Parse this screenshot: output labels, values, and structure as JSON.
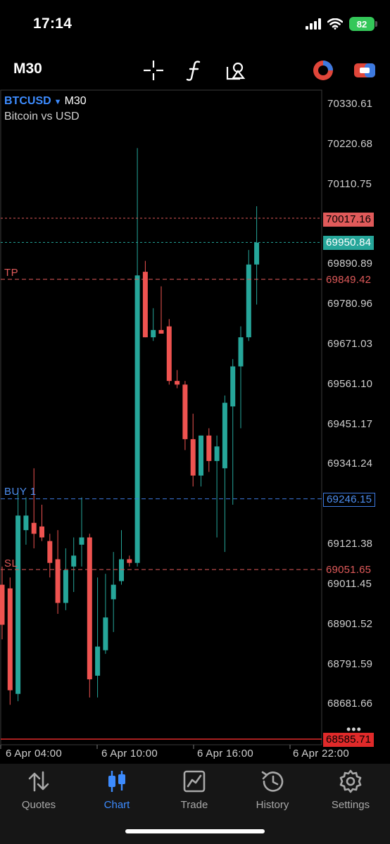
{
  "status_bar": {
    "time": "17:14",
    "battery": "82",
    "icons": [
      "cellular-signal-icon",
      "wifi-icon",
      "battery-icon"
    ]
  },
  "toolbar": {
    "timeframe": "M30",
    "tools": [
      "crosshair-icon",
      "indicators-icon",
      "objects-icon",
      "trade-signal-icon",
      "one-click-trading-icon"
    ]
  },
  "chart": {
    "symbol": "BTCUSD",
    "period": "M30",
    "description": "Bitcoin vs USD",
    "levels": {
      "ask": "70017.16",
      "bid": "69950.84",
      "tp": "69849.42",
      "buy": "69246.15",
      "sl": "69051.65",
      "last": "68585.71"
    },
    "level_labels": {
      "tp": "TP",
      "buy": "BUY 1",
      "sl": "SL"
    },
    "colors": {
      "bull": "#26a69a",
      "bear": "#ef5350",
      "ask_line": "#e05a5a",
      "bid_line": "#26a69a",
      "buy_line": "#3d7ae0"
    },
    "more": "•••"
  },
  "chart_data": {
    "type": "candlestick",
    "y_ticks": [
      "70330.61",
      "70220.68",
      "70110.75",
      "69890.89",
      "69780.96",
      "69671.03",
      "69561.10",
      "69451.17",
      "69341.24",
      "69121.38",
      "69011.45",
      "68901.52",
      "68791.59",
      "68681.66"
    ],
    "x_ticks": [
      "6 Apr 04:00",
      "6 Apr 10:00",
      "6 Apr 16:00",
      "6 Apr 22:00"
    ],
    "ylim": [
      68585.71,
      70330.61
    ],
    "candles": [
      {
        "o": 69010,
        "h": 69060,
        "l": 68860,
        "c": 68900
      },
      {
        "o": 69000,
        "h": 69030,
        "l": 68680,
        "c": 68720
      },
      {
        "o": 68710,
        "h": 69260,
        "l": 68690,
        "c": 69200
      },
      {
        "o": 69160,
        "h": 69250,
        "l": 69120,
        "c": 69200
      },
      {
        "o": 69180,
        "h": 69330,
        "l": 69110,
        "c": 69150
      },
      {
        "o": 69170,
        "h": 69230,
        "l": 69130,
        "c": 69140
      },
      {
        "o": 69130,
        "h": 69150,
        "l": 69030,
        "c": 69070
      },
      {
        "o": 69080,
        "h": 69160,
        "l": 68930,
        "c": 68960
      },
      {
        "o": 68960,
        "h": 69110,
        "l": 68940,
        "c": 69050
      },
      {
        "o": 69060,
        "h": 69140,
        "l": 68990,
        "c": 69090
      },
      {
        "o": 69120,
        "h": 69250,
        "l": 69060,
        "c": 69140
      },
      {
        "o": 69140,
        "h": 69150,
        "l": 68700,
        "c": 68750
      },
      {
        "o": 68760,
        "h": 69030,
        "l": 68700,
        "c": 68840
      },
      {
        "o": 68830,
        "h": 69040,
        "l": 68820,
        "c": 68920
      },
      {
        "o": 68970,
        "h": 69100,
        "l": 68880,
        "c": 69010
      },
      {
        "o": 69020,
        "h": 69160,
        "l": 69010,
        "c": 69080
      },
      {
        "o": 69080,
        "h": 69090,
        "l": 69060,
        "c": 69070
      },
      {
        "o": 69070,
        "h": 70210,
        "l": 69060,
        "c": 69860
      },
      {
        "o": 69870,
        "h": 69900,
        "l": 69690,
        "c": 69690
      },
      {
        "o": 69690,
        "h": 69770,
        "l": 69680,
        "c": 69710
      },
      {
        "o": 69710,
        "h": 69830,
        "l": 69700,
        "c": 69700
      },
      {
        "o": 69720,
        "h": 69740,
        "l": 69560,
        "c": 69570
      },
      {
        "o": 69570,
        "h": 69600,
        "l": 69550,
        "c": 69560
      },
      {
        "o": 69560,
        "h": 69570,
        "l": 69380,
        "c": 69410
      },
      {
        "o": 69410,
        "h": 69480,
        "l": 69280,
        "c": 69310
      },
      {
        "o": 69310,
        "h": 69420,
        "l": 69280,
        "c": 69420
      },
      {
        "o": 69420,
        "h": 69440,
        "l": 69320,
        "c": 69350
      },
      {
        "o": 69350,
        "h": 69420,
        "l": 69140,
        "c": 69390
      },
      {
        "o": 69330,
        "h": 69530,
        "l": 69100,
        "c": 69510
      },
      {
        "o": 69500,
        "h": 69630,
        "l": 69230,
        "c": 69610
      },
      {
        "o": 69610,
        "h": 69720,
        "l": 69440,
        "c": 69690
      },
      {
        "o": 69690,
        "h": 69930,
        "l": 69680,
        "c": 69890
      },
      {
        "o": 69890,
        "h": 70050,
        "l": 69780,
        "c": 69950
      }
    ]
  },
  "tabs": [
    {
      "label": "Quotes",
      "icon": "quotes-icon",
      "active": false
    },
    {
      "label": "Chart",
      "icon": "chart-icon",
      "active": true
    },
    {
      "label": "Trade",
      "icon": "trade-icon",
      "active": false
    },
    {
      "label": "History",
      "icon": "history-icon",
      "active": false
    },
    {
      "label": "Settings",
      "icon": "settings-icon",
      "active": false
    }
  ]
}
